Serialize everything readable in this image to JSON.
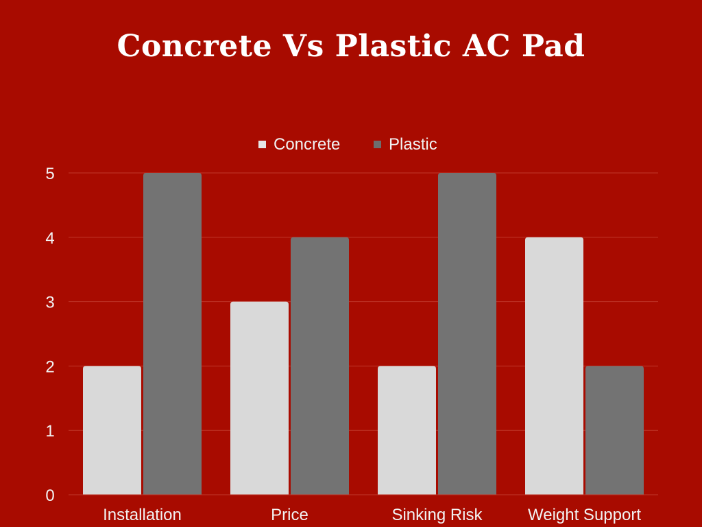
{
  "chart_data": {
    "type": "bar",
    "title": "Concrete Vs Plastic AC Pad",
    "categories": [
      "Installation",
      "Price",
      "Sinking Risk",
      "Weight Support"
    ],
    "series": [
      {
        "name": "Concrete",
        "values": [
          2,
          3,
          2,
          4
        ],
        "color": "#d9d9d9"
      },
      {
        "name": "Plastic",
        "values": [
          5,
          4,
          5,
          2
        ],
        "color": "#737373"
      }
    ],
    "xlabel": "",
    "ylabel": "",
    "ylim": [
      0,
      5
    ],
    "yticks": [
      "0",
      "1",
      "2",
      "3",
      "4",
      "5"
    ],
    "grid": true,
    "legend_position": "top-center",
    "colors": {
      "background": "#a80b00",
      "gridline": "#c0392b",
      "text": "#f2f2f2"
    }
  }
}
